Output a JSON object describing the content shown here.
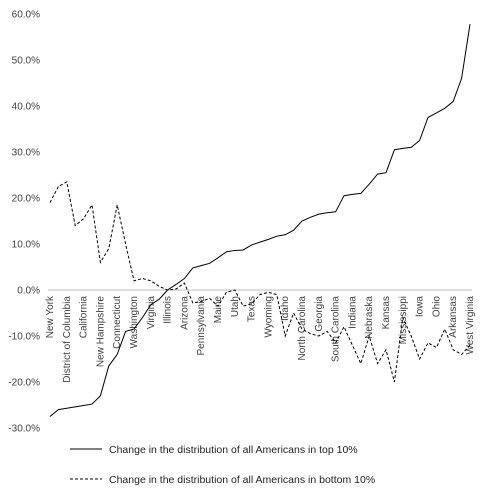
{
  "chart_data": {
    "type": "line",
    "title": "",
    "xlabel": "",
    "ylabel": "",
    "ylim": [
      -0.3,
      0.6
    ],
    "yticks": [
      0.6,
      0.5,
      0.4,
      0.3,
      0.2,
      0.1,
      0.0,
      -0.1,
      -0.2,
      -0.3
    ],
    "ytick_labels": [
      "60.0%",
      "50.0%",
      "40.0%",
      "30.0%",
      "20.0%",
      "10.0%",
      "0.0%",
      "-10.0%",
      "-20.0%",
      "-30.0%"
    ],
    "x": [
      "New York",
      "",
      "District of Columbia",
      "",
      "California",
      "",
      "New Hampshire",
      "",
      "Connecticut",
      "",
      "Washington",
      "",
      "Virginia",
      "",
      "Illinois",
      "",
      "Arizona",
      "",
      "Pennsylvania",
      "",
      "Maine",
      "",
      "Utah",
      "",
      "Texas",
      "",
      "Wyoming",
      "",
      "Idaho",
      "",
      "North Carolina",
      "",
      "Georgia",
      "",
      "South Carolina",
      "",
      "Indiana",
      "",
      "Nebraska",
      "",
      "Kansas",
      "",
      "Mississippi",
      "",
      "Iowa",
      "",
      "Ohio",
      "",
      "Arkansas",
      "",
      "West Virginia"
    ],
    "series": [
      {
        "name": "Change in the distribution of all Americans in top 10%",
        "style": "solid",
        "color": "#000000",
        "values": [
          -0.275,
          -0.26,
          -0.257,
          -0.254,
          -0.251,
          -0.248,
          -0.23,
          -0.165,
          -0.14,
          -0.09,
          -0.085,
          -0.06,
          -0.032,
          -0.02,
          0.0,
          0.012,
          0.025,
          0.048,
          0.053,
          0.058,
          0.07,
          0.083,
          0.086,
          0.087,
          0.098,
          0.104,
          0.11,
          0.117,
          0.12,
          0.13,
          0.15,
          0.158,
          0.165,
          0.168,
          0.17,
          0.205,
          0.208,
          0.21,
          0.23,
          0.252,
          0.255,
          0.305,
          0.308,
          0.31,
          0.325,
          0.375,
          0.385,
          0.395,
          0.41,
          0.46,
          0.578
        ]
      },
      {
        "name": "Change in the distribution of all Americans in bottom 10%",
        "style": "dashed",
        "color": "#000000",
        "values": [
          0.19,
          0.225,
          0.235,
          0.14,
          0.155,
          0.185,
          0.06,
          0.09,
          0.185,
          0.1,
          0.02,
          0.025,
          0.02,
          0.008,
          0.0,
          0.002,
          0.015,
          -0.028,
          -0.025,
          -0.018,
          -0.035,
          -0.005,
          0.0,
          -0.035,
          -0.03,
          -0.01,
          -0.005,
          -0.01,
          -0.1,
          -0.05,
          -0.085,
          -0.095,
          -0.1,
          -0.09,
          -0.115,
          -0.08,
          -0.12,
          -0.16,
          -0.1,
          -0.16,
          -0.13,
          -0.2,
          -0.06,
          -0.1,
          -0.15,
          -0.115,
          -0.125,
          -0.085,
          -0.13,
          -0.14,
          -0.12
        ]
      }
    ],
    "grid": false,
    "legend_position": "bottom"
  }
}
